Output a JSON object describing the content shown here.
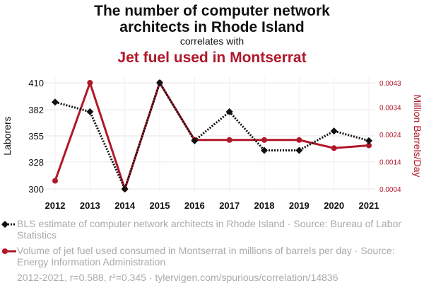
{
  "header": {
    "title_line1": "The number of computer network",
    "title_line2": "architects in Rhode Island",
    "correlates": "correlates with",
    "title2": "Jet fuel used in Montserrat"
  },
  "colors": {
    "series1": "#111111",
    "series2": "#b0182a",
    "muted": "#aaaaaa"
  },
  "chart_data": {
    "type": "line",
    "x": [
      2012,
      2013,
      2014,
      2015,
      2016,
      2017,
      2018,
      2019,
      2020,
      2021
    ],
    "xtick_labels": [
      "2012",
      "2013",
      "2014",
      "2015",
      "2016",
      "2017",
      "2018",
      "2019",
      "2020",
      "2021"
    ],
    "y_left": {
      "label": "Laborers",
      "ylim": [
        300,
        410
      ],
      "ticks": [
        300,
        328,
        355,
        382,
        410
      ],
      "tick_labels": [
        "300",
        "328",
        "355",
        "382",
        "410"
      ]
    },
    "y_right": {
      "label": "Million Barrels/Day",
      "ylim": [
        0.0004,
        0.0043
      ],
      "ticks": [
        0.0004,
        0.0014,
        0.0024,
        0.0034,
        0.0043
      ],
      "tick_labels": [
        "0.0004",
        "0.0014",
        "0.0024",
        "0.0034",
        "0.0043"
      ]
    },
    "series": [
      {
        "name": "BLS estimate of computer network architects in Rhode Island",
        "axis": "left",
        "style": "dotted",
        "marker": "diamond",
        "values": [
          390,
          380,
          300,
          410,
          350,
          380,
          340,
          340,
          360,
          350
        ]
      },
      {
        "name": "Volume of jet fuel used consumed in Montserrat in millions of barrels per day",
        "axis": "right",
        "style": "solid",
        "marker": "circle",
        "values": [
          0.0007,
          0.0043,
          0.0004,
          0.0043,
          0.0022,
          0.0022,
          0.0022,
          0.0022,
          0.0019,
          0.002
        ]
      }
    ],
    "grid": true
  },
  "legend": {
    "item1": "BLS estimate of computer network architects in Rhode Island · Source: Bureau of Labor Statistics",
    "item2": "Volume of jet fuel used consumed in Montserrat in millions of barrels per day · Source: Energy Information Administration"
  },
  "footer": "2012-2021, r=0.588, r²=0.345 · tylervigen.com/spurious/correlation/14836"
}
